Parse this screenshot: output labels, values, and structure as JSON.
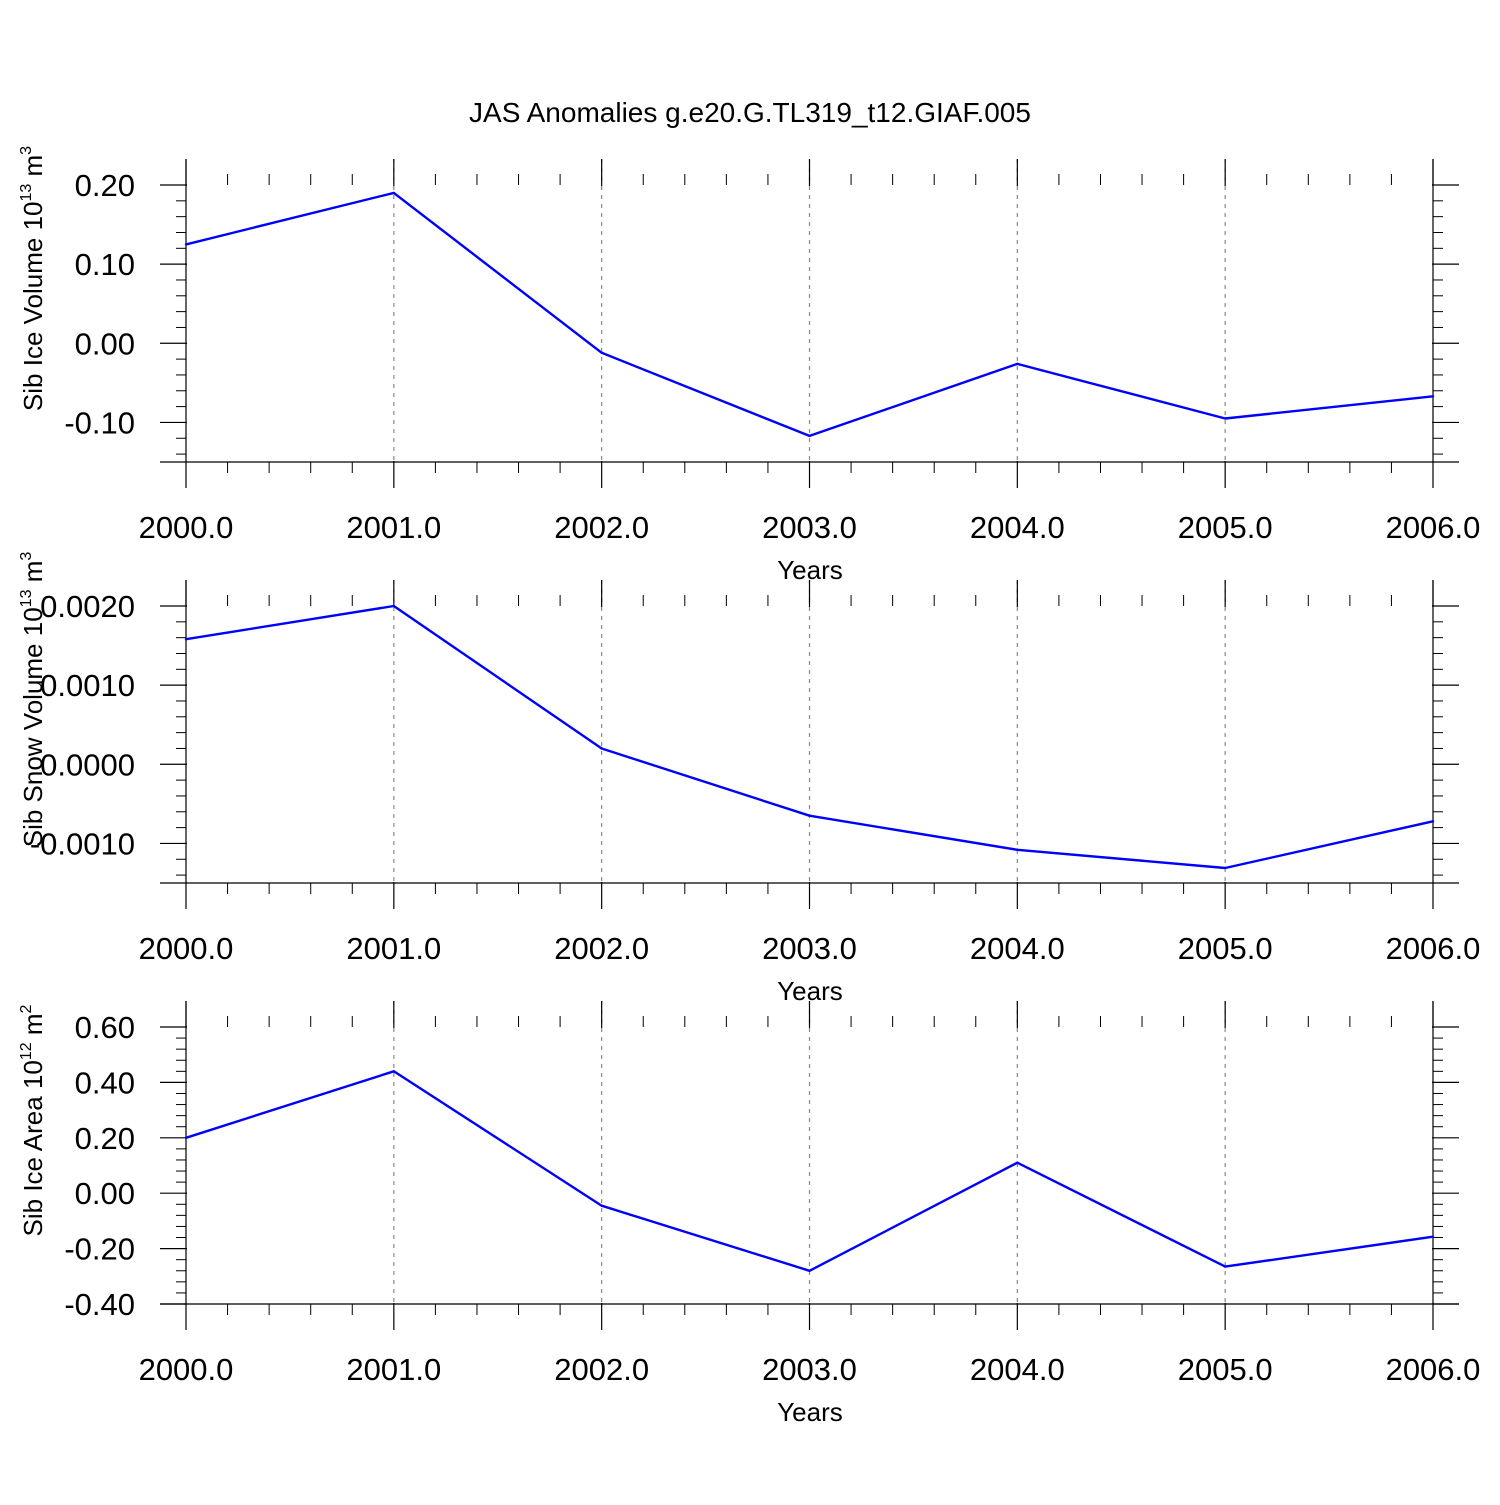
{
  "title": "JAS Anomalies g.e20.G.TL319_t12.GIAF.005",
  "line_color": "#0000ff",
  "chart_data": [
    {
      "type": "line",
      "ylabel": {
        "text": "Sib Ice Volume 10",
        "sup": "13",
        "unit": " m",
        "unit_sup": "3"
      },
      "xlabel": "Years",
      "x": [
        2000,
        2001,
        2002,
        2003,
        2004,
        2005,
        2006
      ],
      "x_tick_labels": [
        "2000.0",
        "2001.0",
        "2002.0",
        "2003.0",
        "2004.0",
        "2005.0",
        "2006.0"
      ],
      "values": [
        0.125,
        0.19,
        -0.012,
        -0.117,
        -0.026,
        -0.095,
        -0.067
      ],
      "y_ticks": [
        0.2,
        0.1,
        0.0,
        -0.1
      ],
      "y_tick_labels": [
        "0.20",
        "0.10",
        "0.00",
        "-0.10"
      ],
      "ylim": [
        -0.15,
        0.2
      ],
      "xlim": [
        2000,
        2006
      ],
      "grid": "vertical dashed"
    },
    {
      "type": "line",
      "ylabel": {
        "text": "Sib Snow Volume 10",
        "sup": "13",
        "unit": " m",
        "unit_sup": "3"
      },
      "xlabel": "Years",
      "x": [
        2000,
        2001,
        2002,
        2003,
        2004,
        2005,
        2006
      ],
      "x_tick_labels": [
        "2000.0",
        "2001.0",
        "2002.0",
        "2003.0",
        "2004.0",
        "2005.0",
        "2006.0"
      ],
      "values": [
        0.00158,
        0.002,
        0.0002,
        -0.00065,
        -0.00108,
        -0.00131,
        -0.00072
      ],
      "y_ticks": [
        0.002,
        0.001,
        0.0,
        -0.001
      ],
      "y_tick_labels": [
        "0.0020",
        "0.0010",
        "0.0000",
        "-0.0010"
      ],
      "ylim": [
        -0.0015,
        0.002
      ],
      "xlim": [
        2000,
        2006
      ],
      "grid": "vertical dashed"
    },
    {
      "type": "line",
      "ylabel": {
        "text": "Sib Ice Area 10",
        "sup": "12",
        "unit": " m",
        "unit_sup": "2"
      },
      "xlabel": "Years",
      "x": [
        2000,
        2001,
        2002,
        2003,
        2004,
        2005,
        2006
      ],
      "x_tick_labels": [
        "2000.0",
        "2001.0",
        "2002.0",
        "2003.0",
        "2004.0",
        "2005.0",
        "2006.0"
      ],
      "values": [
        0.2,
        0.44,
        -0.045,
        -0.28,
        0.11,
        -0.265,
        -0.157
      ],
      "y_ticks": [
        0.6,
        0.4,
        0.2,
        0.0,
        -0.2,
        -0.4
      ],
      "y_tick_labels": [
        "0.60",
        "0.40",
        "0.20",
        "0.00",
        "-0.20",
        "-0.40"
      ],
      "ylim": [
        -0.4,
        0.6
      ],
      "xlim": [
        2000,
        2006
      ],
      "grid": "vertical dashed"
    }
  ]
}
